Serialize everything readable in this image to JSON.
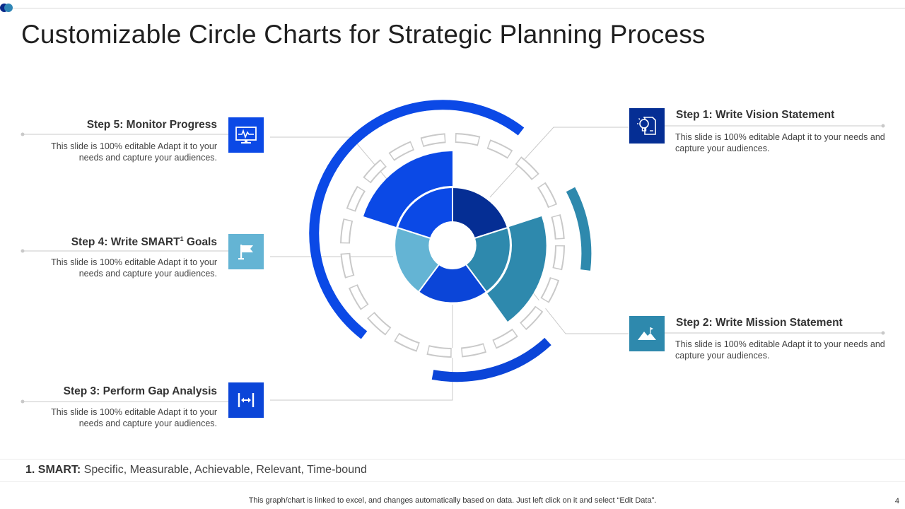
{
  "title": "Customizable Circle Charts for Strategic Planning Process",
  "colors": {
    "dark_navy": "#052e94",
    "royal_blue": "#0b49e6",
    "bright_blue": "#0b45d8",
    "teal": "#2e89ad",
    "light_teal": "#64b4d4",
    "gray_line": "#c9c9c9"
  },
  "steps": [
    {
      "title": "Step 1: Write Vision Statement",
      "desc": "This slide is 100% editable Adapt it to your needs and capture your audiences.",
      "icon": "idea-document-icon"
    },
    {
      "title": "Step 2: Write Mission Statement",
      "desc": "This slide is 100% editable Adapt it to your needs and capture your audiences.",
      "icon": "mountain-image-icon"
    },
    {
      "title": "Step 3: Perform Gap Analysis",
      "desc": "This slide is 100% editable Adapt it to your needs and capture your audiences.",
      "icon": "gap-arrows-icon"
    },
    {
      "title": "Step 4: Write SMART",
      "sup": "1",
      "title_suffix": " Goals",
      "desc": "This slide is 100% editable Adapt it to your needs and capture your audiences.",
      "icon": "flag-icon"
    },
    {
      "title": "Step 5: Monitor Progress",
      "desc": "This slide is 100% editable Adapt it to your needs and capture your audiences.",
      "icon": "monitor-chart-icon"
    }
  ],
  "footnote": {
    "label": "1. SMART:",
    "text": " Specific, Measurable, Achievable, Relevant, Time-bound"
  },
  "bottom_note": "This graph/chart is linked to excel, and changes automatically based on data. Just left click on it and select “Edit Data”.",
  "page_number": "4"
}
